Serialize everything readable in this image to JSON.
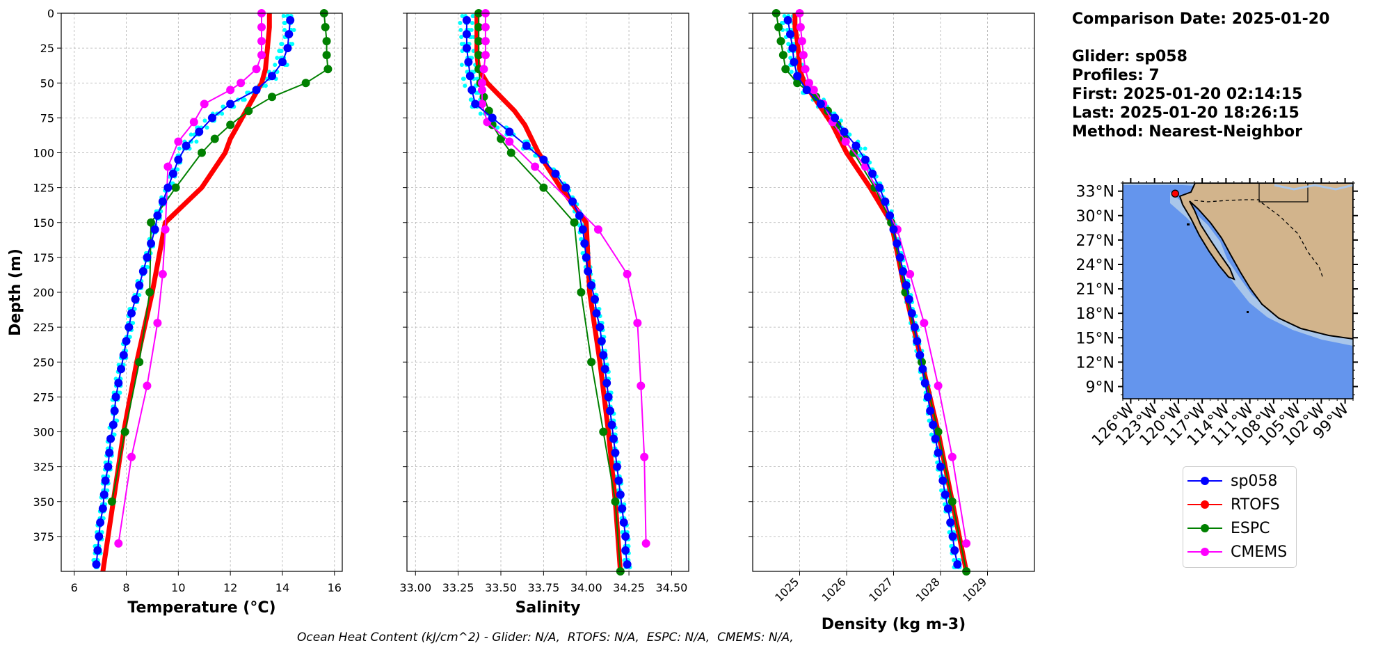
{
  "info": {
    "date_line": "Comparison Date: 2025-01-20",
    "glider_line": "Glider: sp058",
    "profiles_line": "Profiles: 7",
    "first_line": "First: 2025-01-20 02:14:15",
    "last_line": "Last: 2025-01-20 18:26:15",
    "method_line": "Method: Nearest-Neighbor"
  },
  "footer": "Ocean Heat Content (kJ/cm^2) - Glider: N/A,  RTOFS: N/A,  ESPC: N/A,  CMEMS: N/A,",
  "colors": {
    "sp058": "#0000ff",
    "RTOFS": "#ff0000",
    "ESPC": "#008000",
    "CMEMS": "#ff00ff",
    "raw_profiles": "#00ffff",
    "ocean": "#6495ed",
    "shelf": "#a9c6ea",
    "land": "#d2b48c"
  },
  "legend": [
    {
      "name": "sp058",
      "color": "#0000ff"
    },
    {
      "name": "RTOFS",
      "color": "#ff0000"
    },
    {
      "name": "ESPC",
      "color": "#008000"
    },
    {
      "name": "CMEMS",
      "color": "#ff00ff"
    }
  ],
  "chart_data": [
    {
      "type": "line",
      "xlabel": "Temperature (°C)",
      "ylabel": "Depth (m)",
      "xlim": [
        5.5,
        16.3
      ],
      "ylim": [
        400,
        0
      ],
      "xticks": [
        6,
        8,
        10,
        12,
        14,
        16
      ],
      "yticks": [
        0,
        25,
        50,
        75,
        100,
        125,
        150,
        175,
        200,
        225,
        250,
        275,
        300,
        325,
        350,
        375
      ],
      "grid": true,
      "series": [
        {
          "name": "sp058",
          "depth": [
            5,
            15,
            25,
            35,
            45,
            55,
            65,
            75,
            85,
            95,
            105,
            115,
            125,
            135,
            145,
            155,
            165,
            175,
            185,
            195,
            205,
            215,
            225,
            235,
            245,
            255,
            265,
            275,
            285,
            295,
            305,
            315,
            325,
            335,
            345,
            355,
            365,
            375,
            385,
            395
          ],
          "values": [
            14.3,
            14.25,
            14.2,
            14.0,
            13.6,
            13.0,
            12.0,
            11.3,
            10.8,
            10.3,
            10.0,
            9.8,
            9.6,
            9.4,
            9.2,
            9.1,
            8.95,
            8.8,
            8.65,
            8.5,
            8.35,
            8.2,
            8.1,
            8.0,
            7.9,
            7.8,
            7.7,
            7.6,
            7.55,
            7.5,
            7.4,
            7.35,
            7.3,
            7.2,
            7.15,
            7.1,
            7.0,
            6.95,
            6.9,
            6.85
          ]
        },
        {
          "name": "RTOFS",
          "depth": [
            0,
            10,
            20,
            30,
            40,
            50,
            60,
            70,
            80,
            90,
            100,
            125,
            150,
            200,
            250,
            300,
            350,
            400
          ],
          "values": [
            13.5,
            13.5,
            13.45,
            13.4,
            13.35,
            13.2,
            12.9,
            12.6,
            12.3,
            12.0,
            11.8,
            10.9,
            9.5,
            9.0,
            8.4,
            7.9,
            7.5,
            7.1
          ]
        },
        {
          "name": "ESPC",
          "depth": [
            0,
            10,
            20,
            30,
            40,
            50,
            60,
            70,
            80,
            90,
            100,
            125,
            150,
            200,
            250,
            300,
            350
          ],
          "values": [
            15.6,
            15.65,
            15.7,
            15.7,
            15.75,
            14.9,
            13.6,
            12.7,
            12.0,
            11.4,
            10.9,
            9.9,
            8.95,
            8.9,
            8.5,
            7.95,
            7.45
          ]
        },
        {
          "name": "CMEMS",
          "depth": [
            0,
            10,
            20,
            30,
            40,
            50,
            55,
            65,
            78,
            92,
            110,
            155,
            187,
            222,
            267,
            318,
            380
          ],
          "values": [
            13.2,
            13.2,
            13.2,
            13.2,
            13.0,
            12.4,
            12.0,
            11.0,
            10.6,
            10.0,
            9.6,
            9.5,
            9.4,
            9.2,
            8.8,
            8.2,
            7.7
          ]
        }
      ]
    },
    {
      "type": "line",
      "xlabel": "Salinity",
      "ylabel": "",
      "xlim": [
        32.95,
        34.6
      ],
      "ylim": [
        400,
        0
      ],
      "xticks": [
        33.0,
        33.25,
        33.5,
        33.75,
        34.0,
        34.25,
        34.5
      ],
      "xticklabels": [
        "33.00",
        "33.25",
        "33.50",
        "33.75",
        "34.00",
        "34.25",
        "34.50"
      ],
      "grid": true,
      "series": [
        {
          "name": "sp058",
          "depth": [
            5,
            15,
            25,
            35,
            45,
            55,
            65,
            75,
            85,
            95,
            105,
            115,
            125,
            135,
            145,
            155,
            165,
            175,
            185,
            195,
            205,
            215,
            225,
            235,
            245,
            255,
            265,
            275,
            285,
            295,
            305,
            315,
            325,
            335,
            345,
            355,
            365,
            375,
            385,
            395
          ],
          "values": [
            33.3,
            33.3,
            33.3,
            33.31,
            33.32,
            33.33,
            33.35,
            33.45,
            33.55,
            33.65,
            33.75,
            33.82,
            33.88,
            33.92,
            33.96,
            33.98,
            33.99,
            34.0,
            34.01,
            34.03,
            34.05,
            34.06,
            34.08,
            34.09,
            34.1,
            34.11,
            34.12,
            34.13,
            34.14,
            34.15,
            34.16,
            34.17,
            34.18,
            34.19,
            34.2,
            34.21,
            34.22,
            34.23,
            34.23,
            34.24
          ]
        },
        {
          "name": "RTOFS",
          "depth": [
            0,
            10,
            20,
            30,
            40,
            50,
            60,
            70,
            80,
            90,
            100,
            125,
            150,
            200,
            250,
            300,
            350,
            400
          ],
          "values": [
            33.36,
            33.36,
            33.36,
            33.36,
            33.37,
            33.42,
            33.5,
            33.58,
            33.64,
            33.68,
            33.72,
            33.85,
            34.0,
            34.02,
            34.08,
            34.13,
            34.17,
            34.2
          ]
        },
        {
          "name": "ESPC",
          "depth": [
            0,
            10,
            20,
            30,
            40,
            50,
            60,
            70,
            80,
            90,
            100,
            125,
            150,
            200,
            250,
            300,
            350,
            400
          ],
          "values": [
            33.37,
            33.37,
            33.37,
            33.37,
            33.37,
            33.38,
            33.4,
            33.43,
            33.45,
            33.5,
            33.56,
            33.75,
            33.93,
            33.97,
            34.03,
            34.1,
            34.17,
            34.2
          ]
        },
        {
          "name": "CMEMS",
          "depth": [
            0,
            10,
            20,
            30,
            40,
            50,
            55,
            65,
            78,
            92,
            110,
            155,
            187,
            222,
            267,
            318,
            380
          ],
          "values": [
            33.41,
            33.41,
            33.41,
            33.41,
            33.4,
            33.39,
            33.39,
            33.39,
            33.42,
            33.55,
            33.7,
            34.07,
            34.24,
            34.3,
            34.32,
            34.34,
            34.35
          ]
        }
      ]
    },
    {
      "type": "line",
      "xlabel": "Density (kg m-3)",
      "ylabel": "",
      "xlim": [
        1024.0,
        1030.0
      ],
      "ylim": [
        400,
        0
      ],
      "xticks": [
        1025,
        1026,
        1027,
        1028,
        1029
      ],
      "grid": true,
      "series": [
        {
          "name": "sp058",
          "depth": [
            5,
            15,
            25,
            35,
            45,
            55,
            65,
            75,
            85,
            95,
            105,
            115,
            125,
            135,
            145,
            155,
            165,
            175,
            185,
            195,
            205,
            215,
            225,
            235,
            245,
            255,
            265,
            275,
            285,
            295,
            305,
            315,
            325,
            335,
            345,
            355,
            365,
            375,
            385,
            395
          ],
          "values": [
            1024.75,
            1024.8,
            1024.85,
            1024.88,
            1024.95,
            1025.15,
            1025.45,
            1025.75,
            1025.95,
            1026.2,
            1026.4,
            1026.55,
            1026.7,
            1026.82,
            1026.92,
            1027.0,
            1027.07,
            1027.14,
            1027.2,
            1027.27,
            1027.33,
            1027.39,
            1027.45,
            1027.5,
            1027.56,
            1027.62,
            1027.67,
            1027.73,
            1027.78,
            1027.84,
            1027.89,
            1027.95,
            1028.0,
            1028.05,
            1028.1,
            1028.16,
            1028.21,
            1028.26,
            1028.3,
            1028.36
          ]
        },
        {
          "name": "RTOFS",
          "depth": [
            0,
            10,
            20,
            30,
            40,
            50,
            60,
            70,
            80,
            90,
            100,
            125,
            150,
            200,
            250,
            300,
            350,
            400
          ],
          "values": [
            1024.9,
            1024.9,
            1024.95,
            1024.98,
            1025.0,
            1025.1,
            1025.3,
            1025.5,
            1025.7,
            1025.85,
            1026.0,
            1026.5,
            1026.95,
            1027.25,
            1027.6,
            1027.95,
            1028.25,
            1028.55
          ]
        },
        {
          "name": "ESPC",
          "depth": [
            0,
            10,
            20,
            30,
            40,
            50,
            60,
            70,
            80,
            90,
            100,
            125,
            150,
            200,
            250,
            300,
            350,
            400
          ],
          "values": [
            1024.5,
            1024.55,
            1024.6,
            1024.65,
            1024.7,
            1024.95,
            1025.35,
            1025.6,
            1025.8,
            1025.95,
            1026.15,
            1026.6,
            1026.95,
            1027.25,
            1027.6,
            1027.95,
            1028.25,
            1028.55
          ]
        },
        {
          "name": "CMEMS",
          "depth": [
            0,
            10,
            20,
            30,
            40,
            50,
            55,
            65,
            78,
            92,
            110,
            155,
            187,
            222,
            267,
            318,
            380
          ],
          "values": [
            1025.0,
            1025.02,
            1025.05,
            1025.08,
            1025.12,
            1025.2,
            1025.3,
            1025.5,
            1025.7,
            1025.98,
            1026.4,
            1027.08,
            1027.35,
            1027.65,
            1027.95,
            1028.25,
            1028.55
          ]
        }
      ]
    }
  ],
  "map": {
    "lat_ticks": [
      "33°N",
      "30°N",
      "27°N",
      "24°N",
      "21°N",
      "18°N",
      "15°N",
      "12°N",
      "9°N"
    ],
    "lon_ticks": [
      "126°W",
      "123°W",
      "120°W",
      "117°W",
      "114°W",
      "111°W",
      "108°W",
      "105°W",
      "102°W",
      "99°W"
    ],
    "lon_range": [
      -127,
      -98
    ],
    "lat_range": [
      7.5,
      34
    ],
    "glider_position": {
      "lon": -120.4,
      "lat": 32.7
    }
  }
}
